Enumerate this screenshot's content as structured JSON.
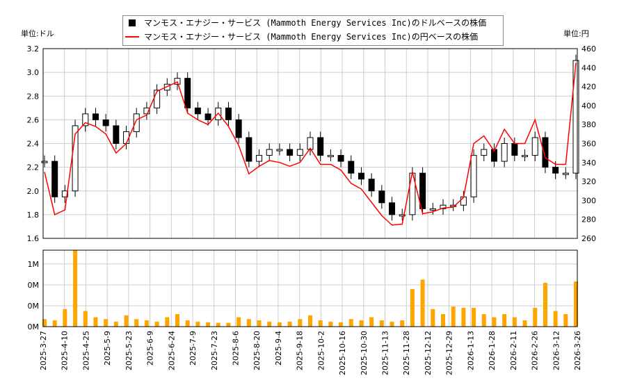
{
  "chart_data": {
    "type": "line",
    "left_unit": "単位:ドル",
    "right_unit": "単位:円",
    "legend": [
      {
        "label": "マンモス・エナジー・サービス (Mammoth Energy Services Inc)のドルベースの株価",
        "color": "#000000"
      },
      {
        "label": "マンモス・エナジー・サービス (Mammoth Energy Services Inc)の円ベースの株価",
        "color": "#ff0000"
      }
    ],
    "y_left": {
      "range": [
        1.6,
        3.2
      ],
      "ticks": [
        "1.6",
        "1.8",
        "2.0",
        "2.2",
        "2.4",
        "2.6",
        "2.8",
        "3.0",
        "3.2"
      ]
    },
    "y_right": {
      "range": [
        260,
        460
      ],
      "ticks": [
        "260",
        "280",
        "300",
        "320",
        "340",
        "360",
        "380",
        "400",
        "420",
        "440",
        "460"
      ]
    },
    "volume_axis": {
      "range": [
        0,
        1.22
      ],
      "ticks": [
        {
          "v": 0,
          "label": "0M"
        },
        {
          "v": 0.333,
          "label": "0M"
        },
        {
          "v": 0.667,
          "label": "0M"
        },
        {
          "v": 1.0,
          "label": "1M"
        }
      ]
    },
    "x_ticks": [
      "2025-3-27",
      "2025-4-10",
      "2025-4-25",
      "2025-5-9",
      "2025-5-23",
      "2025-6-9",
      "2025-6-24",
      "2025-7-9",
      "2025-7-23",
      "2025-8-6",
      "2025-8-20",
      "2025-9-4",
      "2025-9-18",
      "2025-10-2",
      "2025-10-16",
      "2025-10-30",
      "2025-11-13",
      "2025-11-28",
      "2025-12-12",
      "2025-12-29",
      "2026-1-13",
      "2026-1-28",
      "2026-2-11",
      "2026-2-26",
      "2026-3-12",
      "2026-3-26"
    ],
    "usd": [
      2.25,
      1.95,
      2.0,
      2.55,
      2.65,
      2.6,
      2.55,
      2.4,
      2.5,
      2.65,
      2.7,
      2.85,
      2.9,
      2.95,
      2.7,
      2.65,
      2.6,
      2.7,
      2.6,
      2.45,
      2.25,
      2.3,
      2.35,
      2.35,
      2.3,
      2.35,
      2.45,
      2.3,
      2.3,
      2.25,
      2.15,
      2.1,
      2.0,
      1.9,
      1.8,
      1.8,
      2.15,
      1.85,
      1.85,
      1.88,
      1.88,
      1.95,
      2.3,
      2.35,
      2.25,
      2.4,
      2.3,
      2.3,
      2.45,
      2.2,
      2.15,
      2.15,
      3.1
    ],
    "jpy": [
      330,
      285,
      290,
      370,
      382,
      378,
      370,
      350,
      360,
      385,
      390,
      415,
      420,
      425,
      392,
      385,
      380,
      392,
      378,
      358,
      328,
      336,
      342,
      340,
      336,
      340,
      355,
      338,
      338,
      332,
      318,
      312,
      298,
      284,
      274,
      275,
      330,
      286,
      288,
      292,
      293,
      303,
      360,
      368,
      352,
      375,
      360,
      360,
      385,
      345,
      338,
      338,
      445
    ],
    "volume_m": [
      0.12,
      0.1,
      0.28,
      1.22,
      0.25,
      0.15,
      0.12,
      0.08,
      0.18,
      0.12,
      0.1,
      0.08,
      0.15,
      0.2,
      0.1,
      0.08,
      0.07,
      0.06,
      0.06,
      0.15,
      0.12,
      0.1,
      0.08,
      0.07,
      0.08,
      0.12,
      0.18,
      0.1,
      0.08,
      0.07,
      0.12,
      0.1,
      0.15,
      0.1,
      0.08,
      0.1,
      0.6,
      0.75,
      0.28,
      0.2,
      0.32,
      0.3,
      0.3,
      0.2,
      0.15,
      0.2,
      0.15,
      0.1,
      0.3,
      0.7,
      0.25,
      0.2,
      0.72
    ]
  }
}
